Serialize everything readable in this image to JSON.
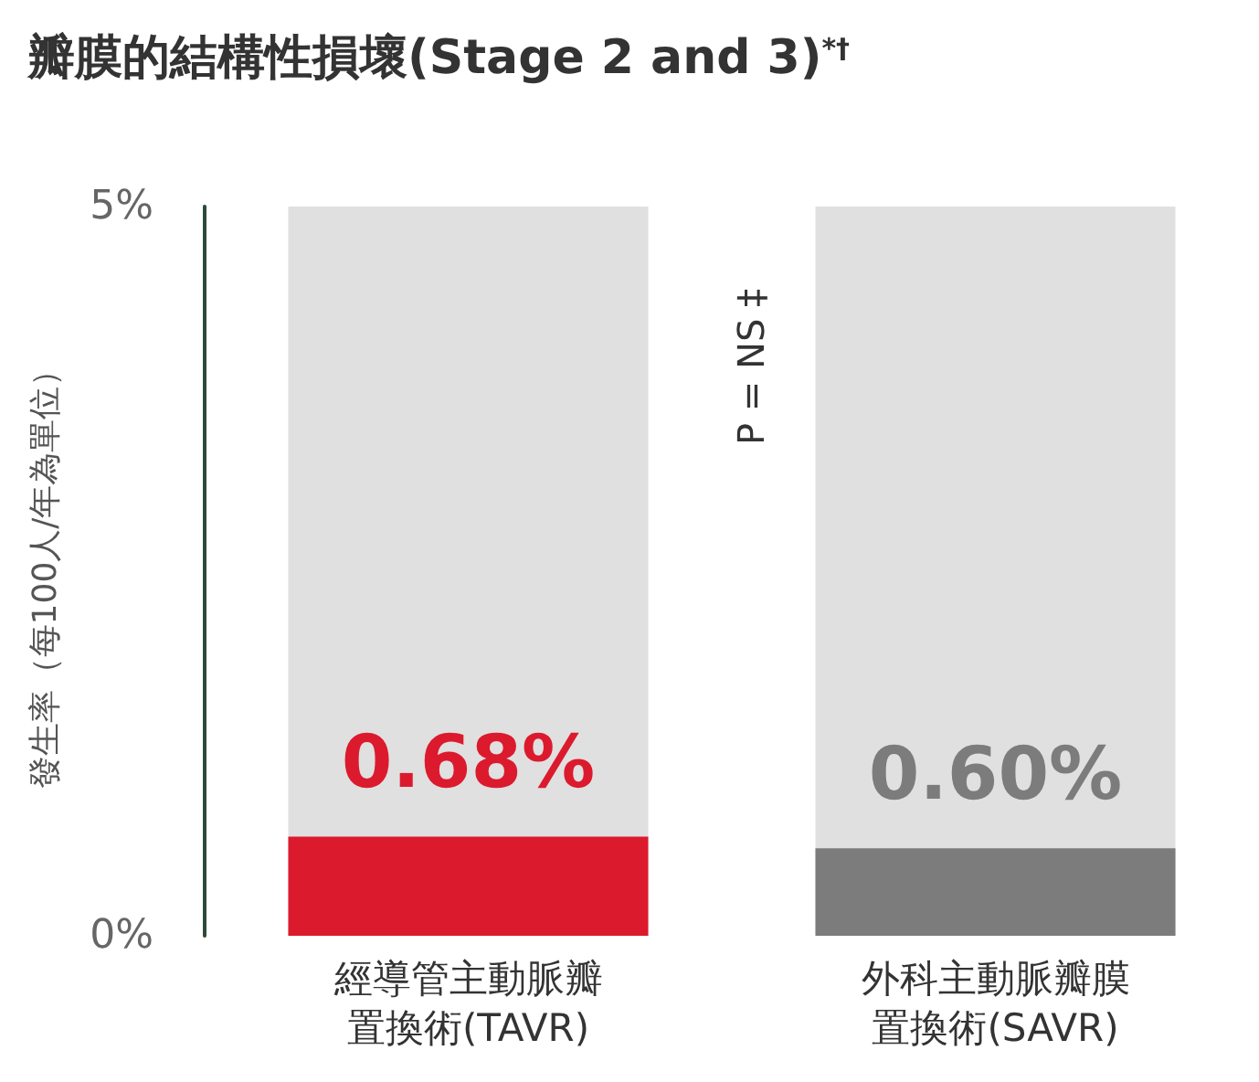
{
  "chart_data": {
    "type": "bar",
    "title": "瓣膜的結構性損壞(Stage 2 and 3)$^{*†}$",
    "ylabel": "發生率（每100人/年為單位）",
    "categories": [
      "經導管主動脈瓣置換術(TAVR)",
      "外科主動脈瓣膜置換術(SAVR)"
    ],
    "values": [
      0.68,
      0.6
    ],
    "colors": [
      "#dc1a2e",
      "#7b7c7b"
    ],
    "value_labels": [
      "0.68%",
      "0.60%"
    ],
    "ylim": [
      0,
      5
    ],
    "yticks": [
      {
        "value": 0,
        "label": "0%"
      },
      {
        "value": 5,
        "label": "5%"
      }
    ],
    "annotations": [
      "P = NS ‡"
    ]
  }
}
